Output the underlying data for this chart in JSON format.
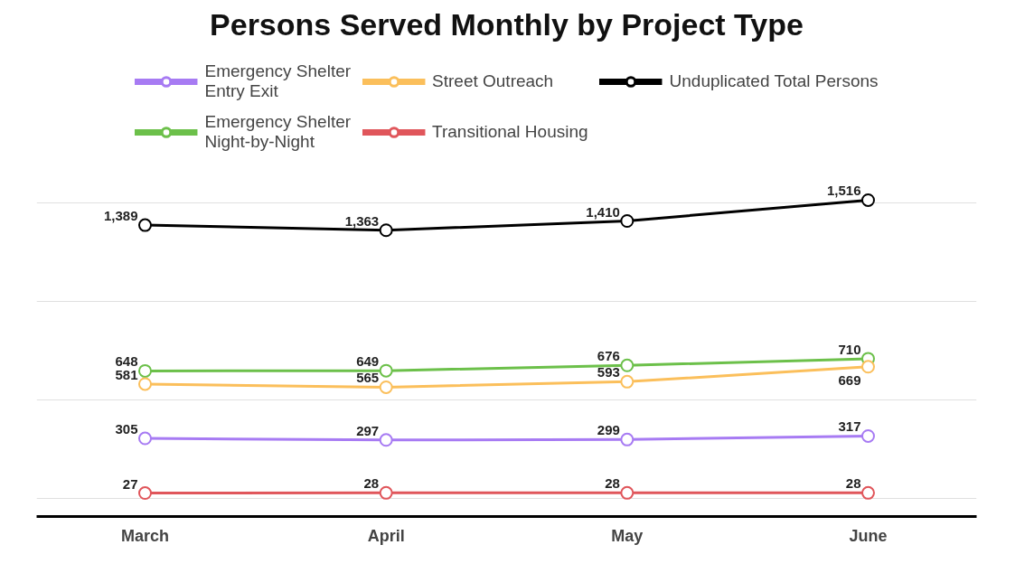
{
  "chart_data": {
    "type": "line",
    "title": "Persons Served Monthly by Project Type",
    "categories": [
      "March",
      "April",
      "May",
      "June"
    ],
    "series": [
      {
        "name": "Emergency Shelter\nEntry Exit",
        "color": "#a77bf3",
        "values": [
          305,
          297,
          299,
          317
        ],
        "value_labels": [
          "305",
          "297",
          "299",
          "317"
        ]
      },
      {
        "name": "Emergency Shelter\nNight-by-Night",
        "color": "#6cc04a",
        "values": [
          648,
          649,
          676,
          710
        ],
        "value_labels": [
          "648",
          "649",
          "676",
          "710"
        ]
      },
      {
        "name": "Street Outreach",
        "color": "#fbbf5b",
        "values": [
          581,
          565,
          593,
          669
        ],
        "value_labels": [
          "581",
          "565",
          "593",
          "669"
        ]
      },
      {
        "name": "Transitional Housing",
        "color": "#e0565b",
        "values": [
          27,
          28,
          28,
          28
        ],
        "value_labels": [
          "27",
          "28",
          "28",
          "28"
        ]
      },
      {
        "name": "Unduplicated Total Persons",
        "color": "#000000",
        "values": [
          1389,
          1363,
          1410,
          1516
        ],
        "value_labels": [
          "1,389",
          "1,363",
          "1,410",
          "1,516"
        ]
      }
    ],
    "tick_labels": "x",
    "grid": "y",
    "legend": "top",
    "marker": "circle",
    "line_style": "solid"
  }
}
